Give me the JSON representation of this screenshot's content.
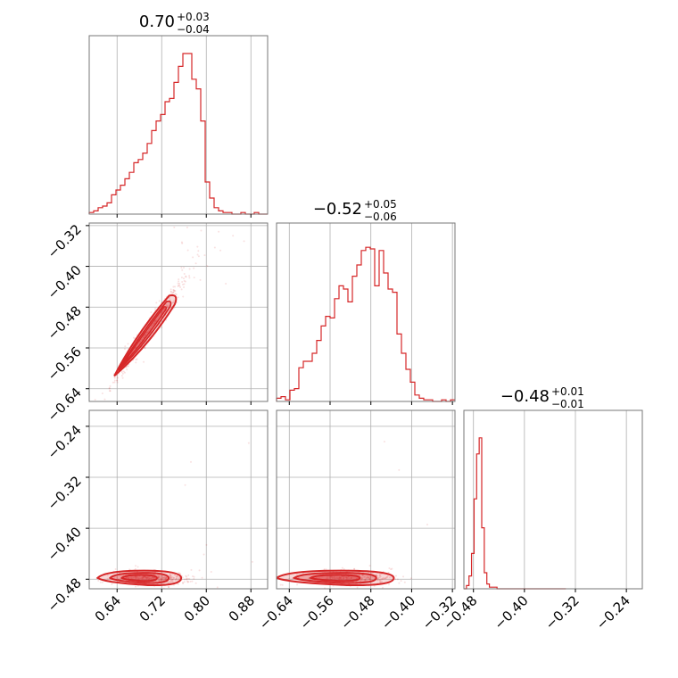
{
  "chart_data": {
    "type": "corner",
    "color": "#d62728",
    "titles": [
      {
        "value": "0.70",
        "plus": "+0.03",
        "minus": "−0.04"
      },
      {
        "value": "−0.52",
        "plus": "+0.05",
        "minus": "−0.06"
      },
      {
        "value": "−0.48",
        "plus": "+0.01",
        "minus": "−0.01"
      }
    ],
    "params": [
      {
        "range": [
          0.59,
          0.91
        ],
        "ticks": [
          0.64,
          0.72,
          0.8,
          0.88
        ],
        "tick_labels": [
          "0.64",
          "0.72",
          "0.80",
          "0.88"
        ],
        "hist_start": 0.59,
        "hist_step": 0.008,
        "hist": [
          0.01,
          0.02,
          0.04,
          0.05,
          0.07,
          0.12,
          0.15,
          0.18,
          0.22,
          0.26,
          0.32,
          0.34,
          0.38,
          0.44,
          0.52,
          0.58,
          0.62,
          0.7,
          0.72,
          0.82,
          0.92,
          1.0,
          1.0,
          0.84,
          0.78,
          0.58,
          0.2,
          0.1,
          0.04,
          0.02,
          0.01,
          0.01,
          0.0,
          0.0,
          0.01,
          0.0,
          0.0,
          0.01,
          0.0,
          0.0
        ]
      },
      {
        "range": [
          -0.665,
          -0.315
        ],
        "ticks": [
          -0.64,
          -0.56,
          -0.48,
          -0.4,
          -0.32
        ],
        "tick_labels": [
          "−0.64",
          "−0.56",
          "−0.48",
          "−0.40",
          "−0.32"
        ],
        "hist_start": -0.665,
        "hist_step": 0.00875,
        "hist": [
          0.02,
          0.03,
          0.01,
          0.07,
          0.08,
          0.21,
          0.25,
          0.25,
          0.3,
          0.38,
          0.47,
          0.53,
          0.52,
          0.64,
          0.72,
          0.7,
          0.62,
          0.78,
          0.85,
          0.94,
          0.96,
          0.95,
          0.72,
          0.94,
          0.8,
          0.7,
          0.68,
          0.42,
          0.3,
          0.2,
          0.12,
          0.04,
          0.02,
          0.01,
          0.01,
          0.0,
          0.0,
          0.01,
          0.0,
          0.01
        ]
      },
      {
        "range": [
          -0.495,
          -0.215
        ],
        "ticks": [
          -0.48,
          -0.4,
          -0.32,
          -0.24
        ],
        "tick_labels": [
          "−0.48",
          "−0.40",
          "−0.32",
          "−0.24"
        ],
        "hist_start": -0.495,
        "hist_step": 0.004,
        "hist": [
          0.0,
          0.02,
          0.08,
          0.22,
          0.56,
          0.84,
          0.94,
          0.38,
          0.1,
          0.03,
          0.01,
          0.01,
          0.01,
          0.0,
          0.0,
          0.0,
          0.0,
          0.0,
          0.0,
          0.0,
          0.0,
          0.0,
          0.0,
          0.0,
          0.0,
          0.0,
          0.0,
          0.0,
          0.0,
          0.0,
          0.0,
          0.0,
          0.0,
          0.0,
          0.0,
          0.0,
          0.0,
          0.0,
          0.0,
          0.0
        ]
      }
    ],
    "grid": true
  }
}
